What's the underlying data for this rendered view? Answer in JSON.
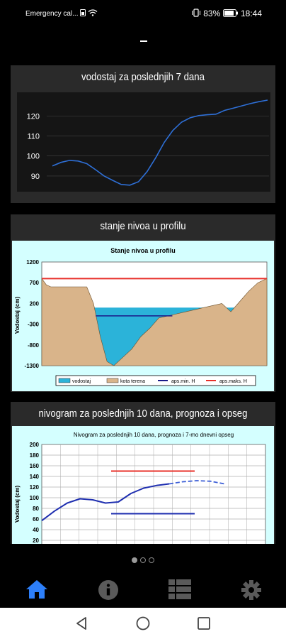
{
  "status_bar": {
    "carrier": "Emergency cal...",
    "battery": "83%",
    "time": "18:44"
  },
  "cards": [
    {
      "title": "vodostaj za poslednjih 7 dana",
      "chart_data": {
        "type": "line",
        "y_ticks": [
          "120",
          "110",
          "100",
          "90"
        ],
        "ylim": [
          85,
          129
        ],
        "series": [
          {
            "color": "#2e6fd6",
            "x": [
              0,
              4,
              8,
              12,
              16,
              20,
              24,
              28,
              32,
              36,
              40,
              44,
              48,
              52,
              56,
              60,
              64,
              68,
              72,
              76,
              80,
              84,
              88,
              92,
              96,
              100
            ],
            "values": [
              95,
              97,
              98,
              97.5,
              96,
              93,
              90,
              88,
              86,
              85.5,
              87,
              92,
              99,
              107,
              113,
              117,
              119,
              120,
              120.5,
              121,
              123,
              124,
              125,
              126,
              127,
              128
            ]
          }
        ]
      }
    },
    {
      "title": "stanje nivoa u profilu",
      "chart_data": {
        "type": "area",
        "title": "Stanje nivoa u profilu",
        "ylabel": "Vodostaj (cm)",
        "y_ticks": [
          "1200",
          "700",
          "200",
          "-300",
          "-800",
          "-1300"
        ],
        "ylim": [
          -1300,
          1200
        ],
        "legend": [
          "vodostaj",
          "kota terena",
          "aps.min. H",
          "aps.maks. H"
        ],
        "aps_max": 800,
        "aps_min": -100,
        "water_level": 100,
        "terrain_x": [
          0,
          2,
          4,
          20,
          23,
          26,
          29,
          32,
          36,
          40,
          44,
          48,
          52,
          56,
          60,
          64,
          68,
          72,
          76,
          80,
          84,
          88,
          92,
          96,
          100
        ],
        "terrain_y": [
          800,
          650,
          600,
          600,
          200,
          -600,
          -1200,
          -1300,
          -1100,
          -900,
          -600,
          -400,
          -150,
          -100,
          -50,
          0,
          50,
          100,
          150,
          200,
          0,
          250,
          500,
          700,
          800
        ]
      }
    },
    {
      "title": "nivogram za poslednjih 10 dana, prognoza i opseg",
      "chart_data": {
        "type": "line",
        "title": "Nivogram za poslednjih 10 dana, prognoza i 7-mo dnevni opseg",
        "ylabel": "Vodostaj (cm)",
        "y_ticks": [
          "200",
          "180",
          "160",
          "140",
          "120",
          "100",
          "80",
          "60",
          "40",
          "20"
        ],
        "ylim": [
          20,
          200
        ],
        "max_line": 150,
        "min_line": 70,
        "series": [
          {
            "name": "",
            "values": [
              57,
              75,
              90,
              98,
              96,
              90,
              92,
              108,
              118,
              123,
              126
            ],
            "style": "solid"
          },
          {
            "name": "",
            "values": [
              126,
              130,
              132,
              131,
              126
            ],
            "style": "dashed"
          }
        ]
      }
    }
  ],
  "nav": {
    "items": [
      "home",
      "info",
      "list",
      "settings"
    ],
    "active_color": "#2d7ff9",
    "inactive_color": "#5a5a5a"
  }
}
